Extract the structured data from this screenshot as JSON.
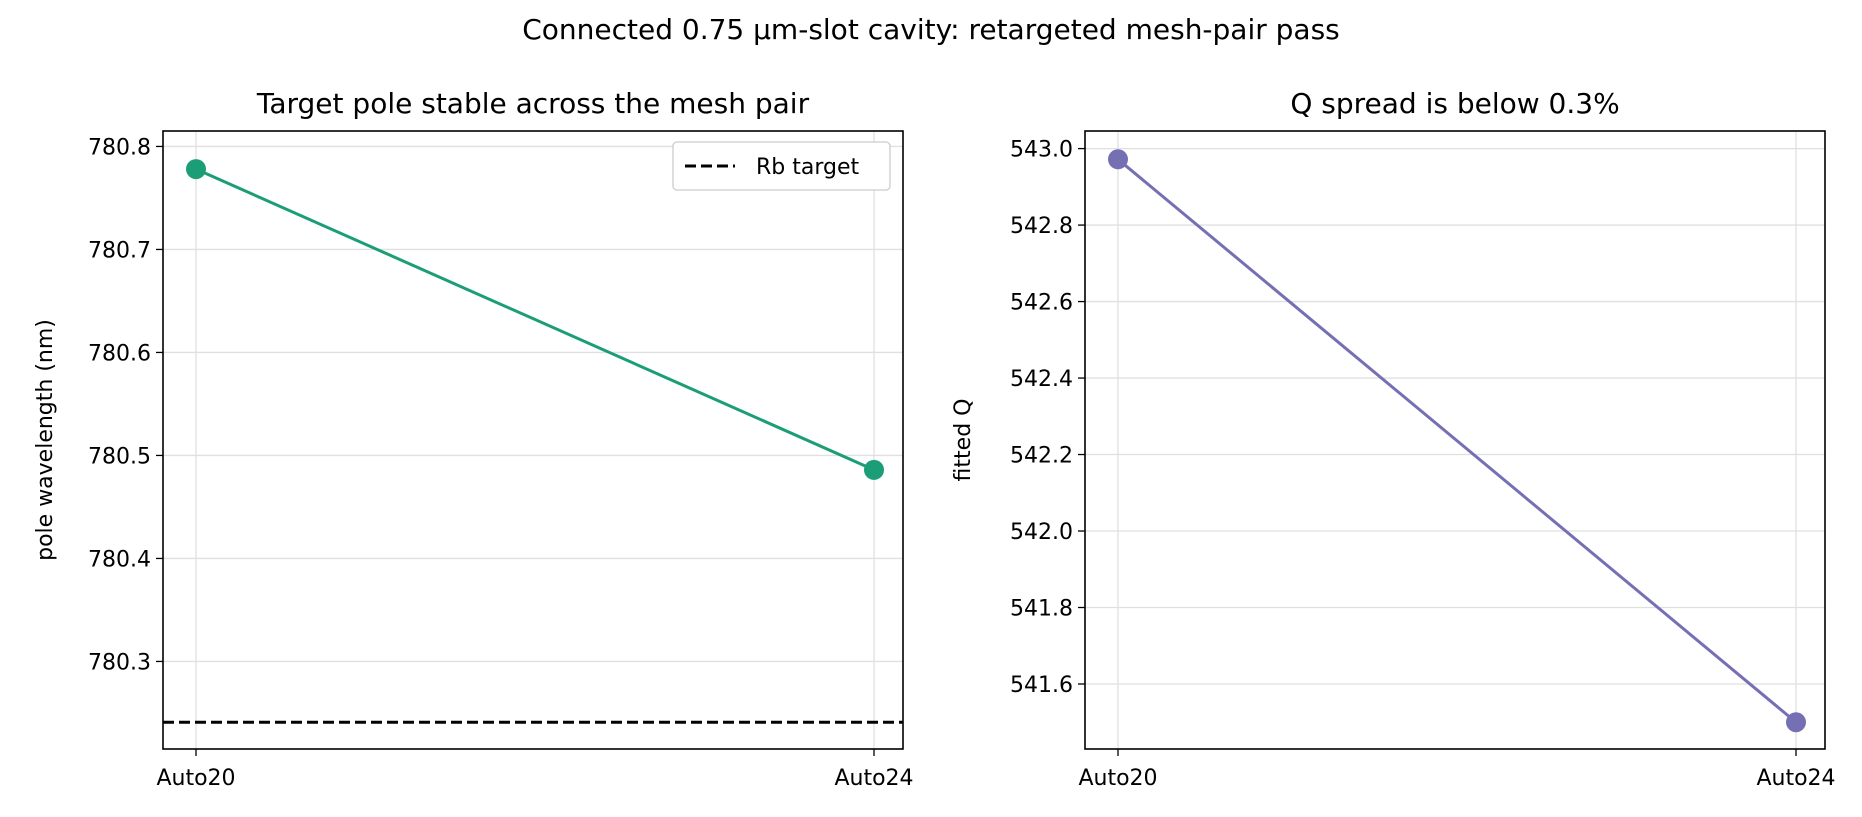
{
  "figure": {
    "suptitle": "Connected 0.75 µm-slot cavity: retargeted mesh-pair pass"
  },
  "chart_data": [
    {
      "type": "line",
      "title": "Target pole stable across the mesh pair",
      "xlabel": "",
      "ylabel": "pole wavelength (nm)",
      "categories": [
        "Auto20",
        "Auto24"
      ],
      "series": [
        {
          "values": [
            780.778,
            780.486
          ],
          "color": "#1b9e77"
        }
      ],
      "reference_line": {
        "name": "Rb target",
        "y": 780.241,
        "style": "dashed",
        "color": "#000000"
      },
      "ylim": [
        780.215,
        780.815
      ],
      "yticks": [
        "780.3",
        "780.4",
        "780.5",
        "780.6",
        "780.7",
        "780.8"
      ],
      "grid": true,
      "legend_placement": "top-right"
    },
    {
      "type": "line",
      "title": "Q spread is below 0.3%",
      "xlabel": "",
      "ylabel": "fitted Q",
      "categories": [
        "Auto20",
        "Auto24"
      ],
      "series": [
        {
          "values": [
            542.972,
            541.5
          ],
          "color": "#7570b3"
        }
      ],
      "ylim": [
        541.43,
        543.046
      ],
      "yticks": [
        "541.6",
        "541.8",
        "542.0",
        "542.2",
        "542.4",
        "542.6",
        "542.8",
        "543.0"
      ],
      "grid": true
    }
  ]
}
